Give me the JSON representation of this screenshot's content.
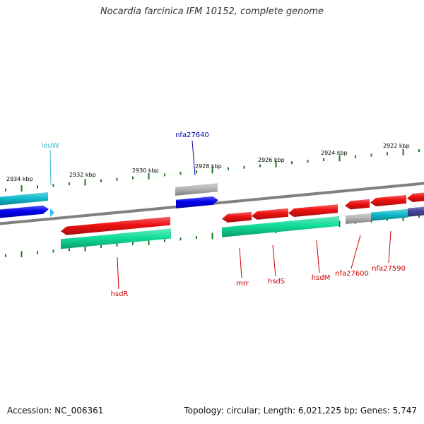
{
  "title": "Nocardia farcinica IFM 10152, complete genome",
  "accession": "Accession: NC_006361",
  "summary": "Topology: circular; Length: 6,021,225 bp; Genes: 5,747",
  "colors": {
    "backbone": "#808080",
    "tick": "#1a7a1a",
    "red_gene": "#ee1111",
    "green_gene": "#11dd99",
    "cyan_gene": "#11bbcc",
    "blue_gene": "#0000ee",
    "gray_gene": "#b4b4b4",
    "navy_gene": "#44449a",
    "red_label": "#cc0000",
    "blue_label": "#0000aa",
    "cyan_label": "#33bbdd"
  },
  "scale_labels": [
    "2934 kbp",
    "2932 kbp",
    "2930 kbp",
    "2928 kbp",
    "2926 kbp",
    "2924 kbp",
    "2922 kbp"
  ],
  "genes": [
    {
      "name": "leuW",
      "color": "cyan_label"
    },
    {
      "name": "nfa27640",
      "color": "blue_label"
    },
    {
      "name": "hsdR",
      "color": "red_label"
    },
    {
      "name": "mrr",
      "color": "red_label"
    },
    {
      "name": "hsdS",
      "color": "red_label"
    },
    {
      "name": "hsdM",
      "color": "red_label"
    },
    {
      "name": "nfa27600",
      "color": "red_label"
    },
    {
      "name": "nfa27590",
      "color": "red_label"
    }
  ]
}
